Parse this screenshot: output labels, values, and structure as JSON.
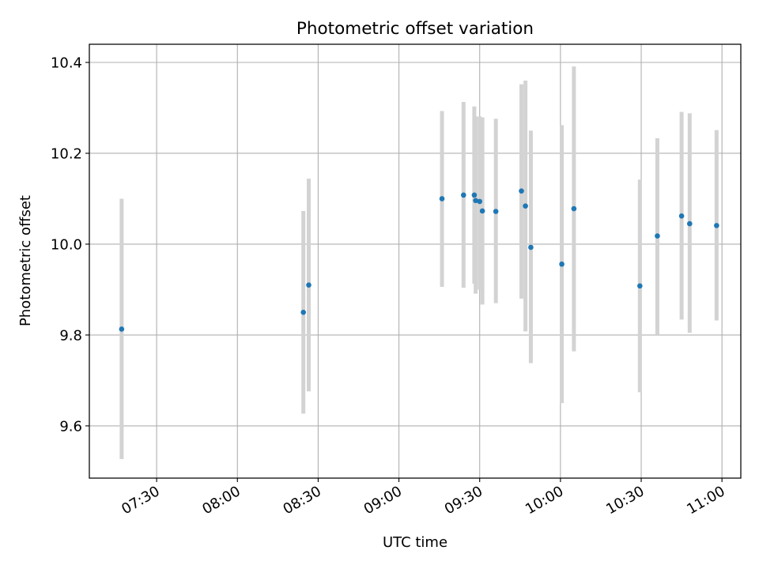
{
  "chart_data": {
    "type": "scatter",
    "title": "Photometric offset variation",
    "xlabel": "UTC time",
    "ylabel": "Photometric offset",
    "x_axis_type": "time",
    "xlim": [
      "07:05",
      "11:07"
    ],
    "ylim": [
      9.485,
      10.44
    ],
    "grid": true,
    "legend": "none",
    "point_color": "#1f77b4",
    "errorbar_color": "#d3d3d3",
    "xticks": [
      "07:30",
      "08:00",
      "08:30",
      "09:00",
      "09:30",
      "10:00",
      "10:30",
      "11:00"
    ],
    "yticks": [
      "9.6",
      "9.8",
      "10.0",
      "10.2",
      "10.4"
    ],
    "ytick_values": [
      9.6,
      9.8,
      10.0,
      10.2,
      10.4
    ],
    "points": [
      {
        "x": "07:17:00",
        "y": 9.813,
        "ylo": 9.527,
        "yhi": 10.1
      },
      {
        "x": "08:24:30",
        "y": 9.85,
        "ylo": 9.627,
        "yhi": 10.073
      },
      {
        "x": "08:26:30",
        "y": 9.91,
        "ylo": 9.676,
        "yhi": 10.144
      },
      {
        "x": "09:16:00",
        "y": 10.1,
        "ylo": 9.906,
        "yhi": 10.293
      },
      {
        "x": "09:24:00",
        "y": 10.108,
        "ylo": 9.904,
        "yhi": 10.313
      },
      {
        "x": "09:28:00",
        "y": 10.108,
        "ylo": 9.913,
        "yhi": 10.303
      },
      {
        "x": "09:28:30",
        "y": 10.096,
        "ylo": 9.891,
        "yhi": 10.281
      },
      {
        "x": "09:30:00",
        "y": 10.094,
        "ylo": 9.9,
        "yhi": 10.281
      },
      {
        "x": "09:31:00",
        "y": 10.073,
        "ylo": 9.867,
        "yhi": 10.279
      },
      {
        "x": "09:36:00",
        "y": 10.072,
        "ylo": 9.87,
        "yhi": 10.276
      },
      {
        "x": "09:45:30",
        "y": 10.117,
        "ylo": 9.88,
        "yhi": 10.352
      },
      {
        "x": "09:47:00",
        "y": 10.084,
        "ylo": 9.808,
        "yhi": 10.36
      },
      {
        "x": "09:49:00",
        "y": 9.993,
        "ylo": 9.738,
        "yhi": 10.25
      },
      {
        "x": "10:00:30",
        "y": 9.956,
        "ylo": 9.65,
        "yhi": 10.262
      },
      {
        "x": "10:05:00",
        "y": 10.078,
        "ylo": 9.764,
        "yhi": 10.391
      },
      {
        "x": "10:29:30",
        "y": 9.908,
        "ylo": 9.674,
        "yhi": 10.142
      },
      {
        "x": "10:36:00",
        "y": 10.018,
        "ylo": 9.8,
        "yhi": 10.233
      },
      {
        "x": "10:45:00",
        "y": 10.062,
        "ylo": 9.834,
        "yhi": 10.291
      },
      {
        "x": "10:48:00",
        "y": 10.045,
        "ylo": 9.805,
        "yhi": 10.288
      },
      {
        "x": "10:58:00",
        "y": 10.041,
        "ylo": 9.832,
        "yhi": 10.251
      }
    ]
  }
}
